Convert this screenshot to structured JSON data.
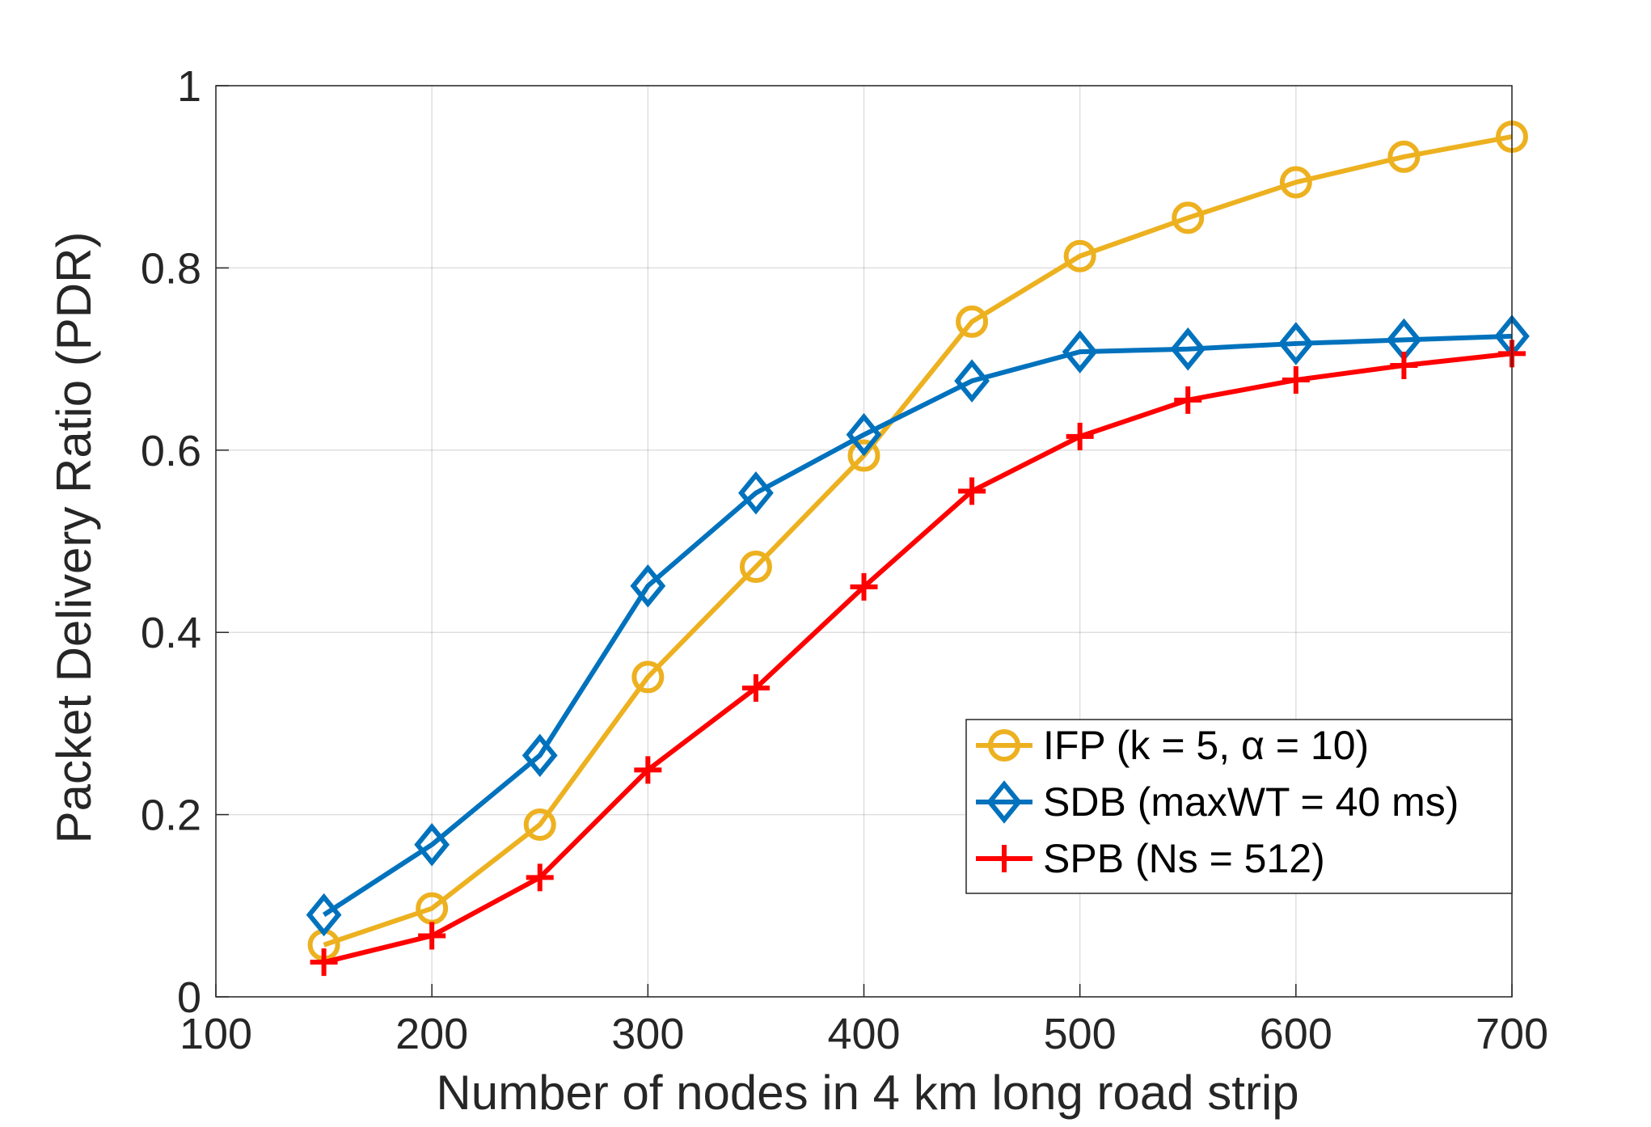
{
  "chart_data": {
    "type": "line",
    "xlabel": "Number of nodes in 4 km long road strip",
    "ylabel": "Packet Delivery Ratio (PDR)",
    "xlim": [
      100,
      700
    ],
    "ylim": [
      0,
      1
    ],
    "xticks": [
      100,
      200,
      300,
      400,
      500,
      600,
      700
    ],
    "yticks": [
      0,
      0.2,
      0.4,
      0.6,
      0.8,
      1
    ],
    "xtick_labels": [
      "100",
      "200",
      "300",
      "400",
      "500",
      "600",
      "700"
    ],
    "ytick_labels": [
      "0",
      "0.2",
      "0.4",
      "0.6",
      "0.8",
      "1"
    ],
    "grid": true,
    "legend_position": "lower-right",
    "x": [
      150,
      200,
      250,
      300,
      350,
      400,
      450,
      500,
      550,
      600,
      650,
      700
    ],
    "series": [
      {
        "name": "IFP (k = 5, α = 10)",
        "color": "#EDB120",
        "marker": "circle",
        "values": [
          0.057,
          0.097,
          0.189,
          0.351,
          0.472,
          0.594,
          0.741,
          0.813,
          0.855,
          0.894,
          0.922,
          0.944
        ]
      },
      {
        "name": "SDB (maxWT = 40 ms)",
        "color": "#0072BD",
        "marker": "diamond",
        "values": [
          0.09,
          0.167,
          0.265,
          0.451,
          0.553,
          0.617,
          0.676,
          0.708,
          0.711,
          0.717,
          0.721,
          0.725
        ]
      },
      {
        "name": "SPB (Ns = 512)",
        "color": "#FF0000",
        "marker": "plus",
        "values": [
          0.038,
          0.067,
          0.131,
          0.249,
          0.339,
          0.45,
          0.555,
          0.615,
          0.655,
          0.677,
          0.693,
          0.706
        ]
      }
    ]
  }
}
